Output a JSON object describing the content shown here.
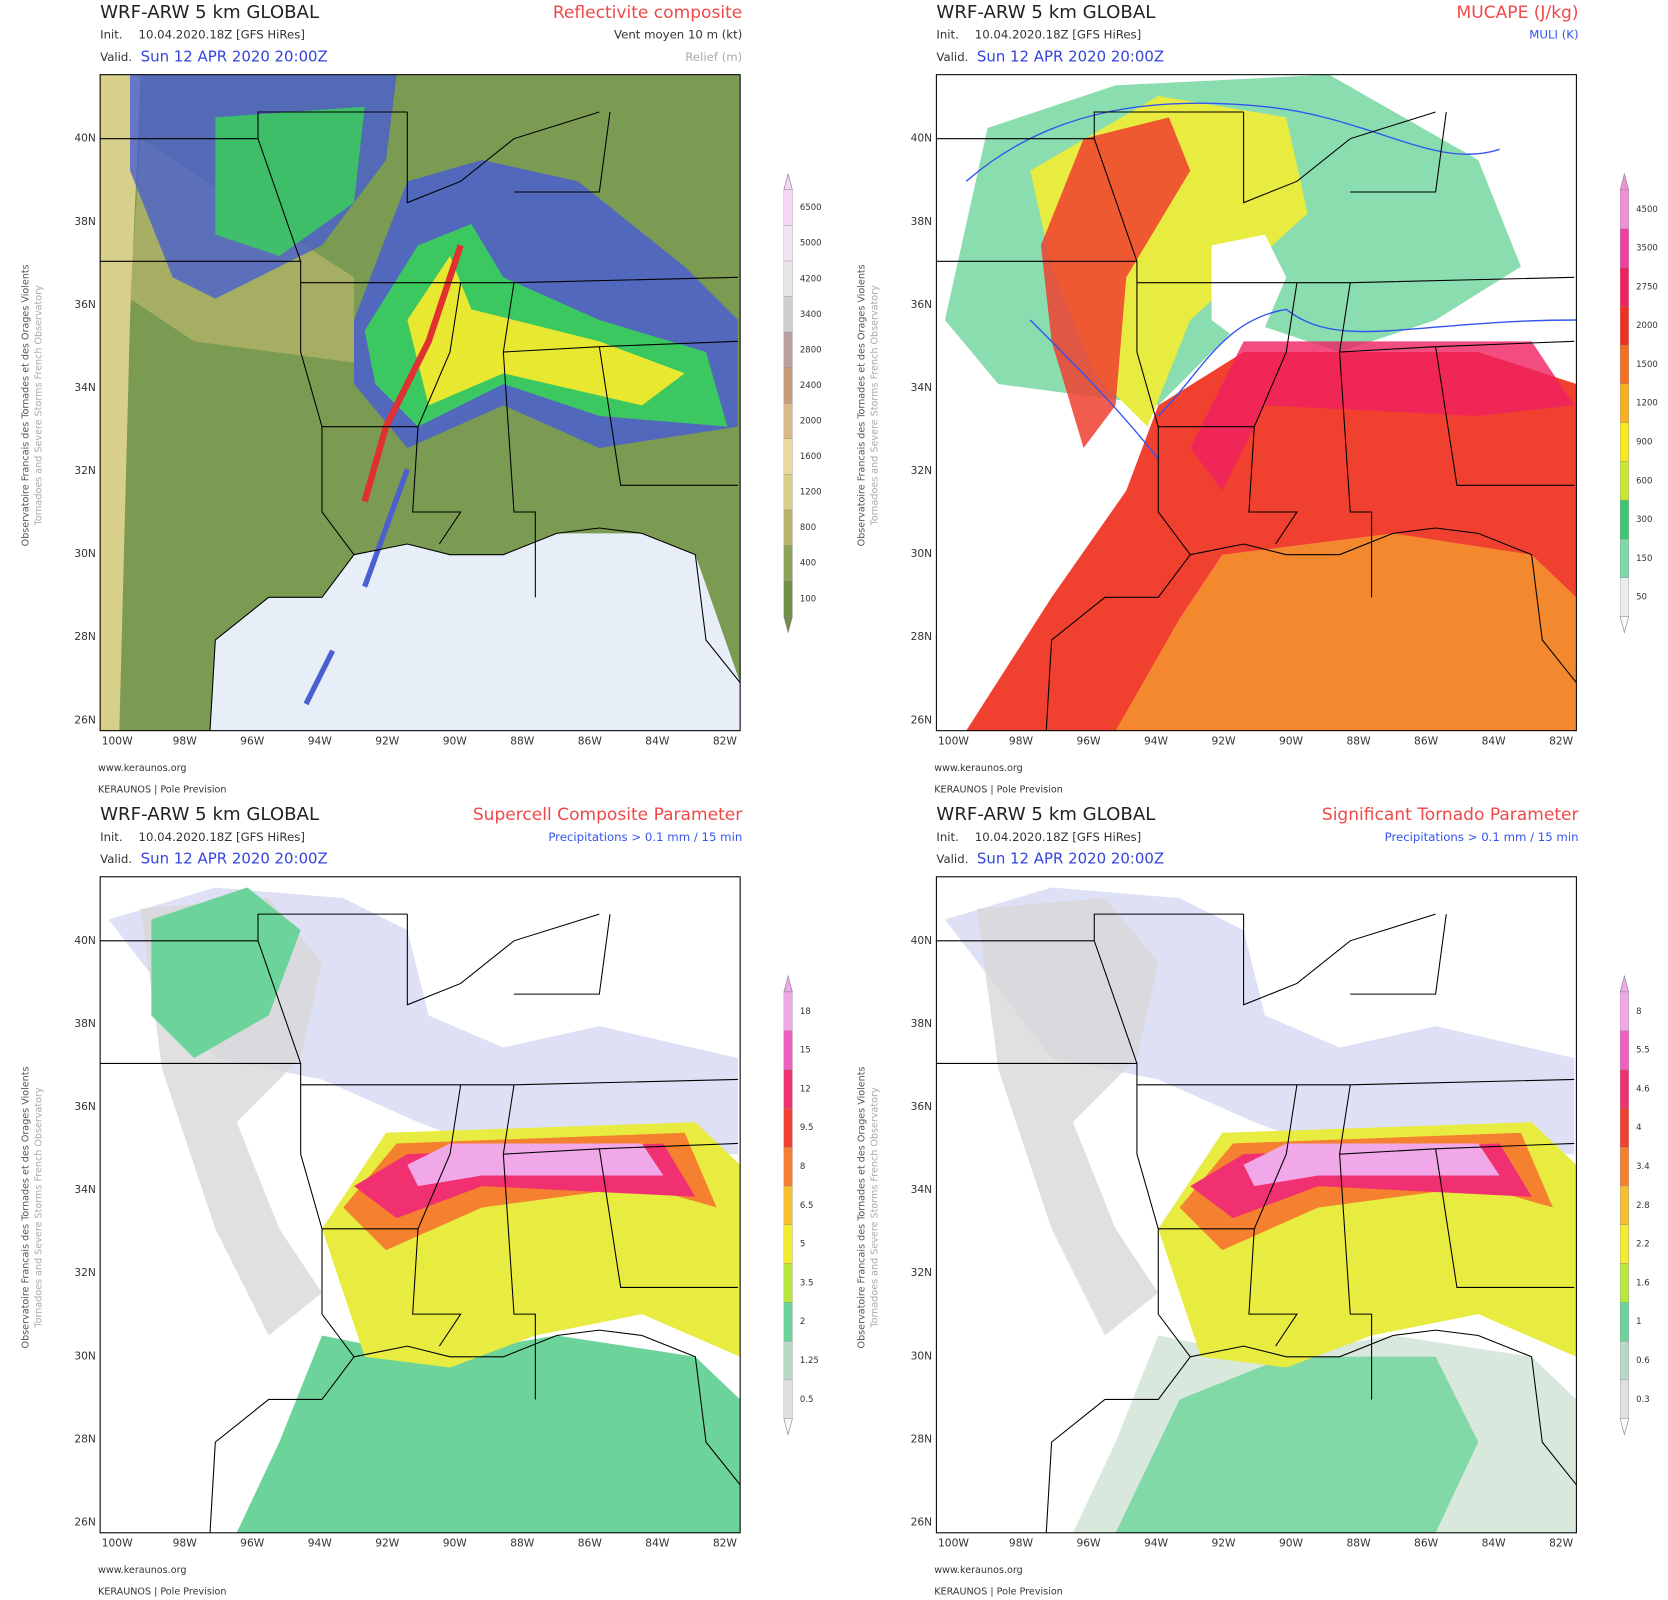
{
  "model": "WRF-ARW 5 km GLOBAL",
  "init_label": "Init.",
  "init": "10.04.2020.18Z [GFS HiRes]",
  "valid_label": "Valid.",
  "valid": "Sun 12 APR 2020 20:00Z",
  "side_text": [
    "Observatoire Francais des Tornades et des Orages Violents",
    "Tornadoes and Severe Storms French Observatory"
  ],
  "footer": [
    "www.keraunos.org",
    "KERAUNOS | Pole Prevision"
  ],
  "lat_labels": [
    "40N",
    "38N",
    "36N",
    "34N",
    "32N",
    "30N",
    "28N",
    "26N"
  ],
  "lon_labels": [
    "100W",
    "98W",
    "96W",
    "94W",
    "92W",
    "90W",
    "88W",
    "86W",
    "84W",
    "82W"
  ],
  "panels": [
    {
      "parameter": "Reflectivite composite",
      "overlay": "Vent moyen 10 m (kt)",
      "overlay2": "Relief (m)",
      "colorbar": [
        100,
        400,
        800,
        1200,
        1600,
        2000,
        2400,
        2800,
        3400,
        4200,
        5000,
        6500
      ]
    },
    {
      "parameter": "MUCAPE (J/kg)",
      "overlay": "MULI (K)",
      "colorbar": [
        50,
        150,
        300,
        600,
        900,
        1200,
        1500,
        2000,
        2750,
        3500,
        4500
      ]
    },
    {
      "parameter": "Supercell Composite Parameter",
      "overlay": "Precipitations > 0.1 mm / 15 min",
      "colorbar": [
        0.5,
        1.25,
        2,
        3.5,
        5,
        6.5,
        8,
        9.5,
        12,
        15,
        18
      ]
    },
    {
      "parameter": "Significant Tornado Parameter",
      "overlay": "Precipitations > 0.1 mm / 15 min",
      "colorbar": [
        0.3,
        0.6,
        1,
        1.6,
        2.2,
        2.8,
        3.4,
        4,
        4.6,
        5.5,
        8
      ]
    }
  ]
}
